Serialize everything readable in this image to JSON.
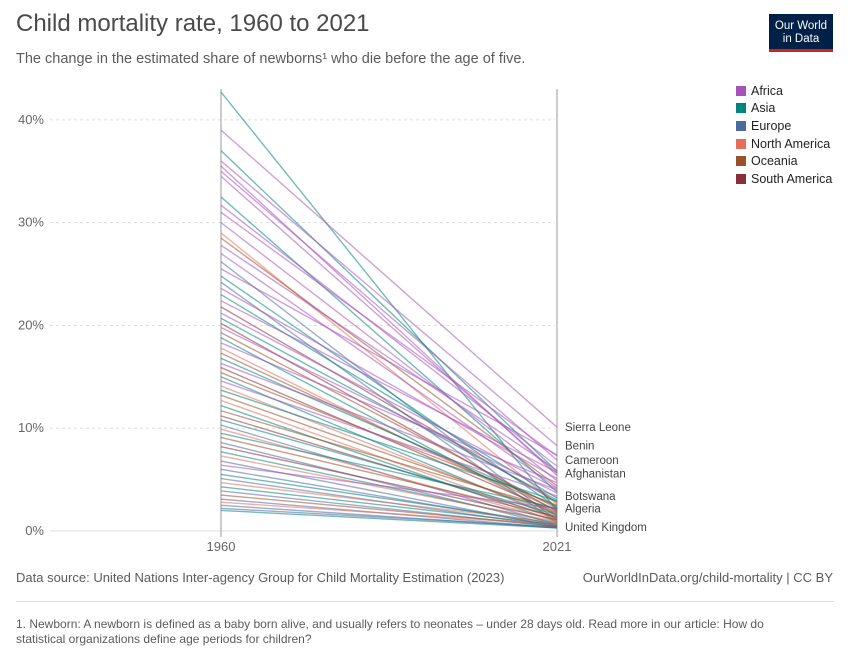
{
  "header": {
    "title": "Child mortality rate, 1960 to 2021",
    "subtitle": "The change in the estimated share of newborns¹ who die before the age of five.",
    "logo_line1": "Our World",
    "logo_line2": "in Data"
  },
  "legend": {
    "placement": "top-right",
    "items": [
      {
        "label": "Africa",
        "color": "#a652ba"
      },
      {
        "label": "Asia",
        "color": "#00847e"
      },
      {
        "label": "Europe",
        "color": "#4c6a9c"
      },
      {
        "label": "North America",
        "color": "#e56e5a"
      },
      {
        "label": "Oceania",
        "color": "#9a5129"
      },
      {
        "label": "South America",
        "color": "#883039"
      }
    ]
  },
  "footer": {
    "source": "Data source: United Nations Inter-agency Group for Child Mortality Estimation (2023)",
    "link": "OurWorldInData.org/child-mortality | CC BY",
    "note": "1. Newborn: A newborn is defined as a baby born alive, and usually refers to neonates – under 28 days old. Read more in our article: How do statistical organizations define age periods for children?"
  },
  "chart_data": {
    "type": "line",
    "title": "Child mortality rate, 1960 to 2021",
    "x": [
      "1960",
      "2021"
    ],
    "ylim": [
      0,
      43
    ],
    "yticks": [
      0,
      10,
      20,
      30,
      40
    ],
    "ytick_labels": [
      "0%",
      "10%",
      "20%",
      "30%",
      "40%"
    ],
    "grid": true,
    "labeled_series": [
      {
        "name": "Sierra Leone",
        "value_2021": 10.1
      },
      {
        "name": "Benin",
        "value_2021": 8.3
      },
      {
        "name": "Cameroon",
        "value_2021": 6.9
      },
      {
        "name": "Afghanistan",
        "value_2021": 5.6
      },
      {
        "name": "Botswana",
        "value_2021": 3.4
      },
      {
        "name": "Algeria",
        "value_2021": 2.2
      },
      {
        "name": "United Kingdom",
        "value_2021": 0.4
      }
    ],
    "series": [
      {
        "region": "Asia",
        "values": [
          42.7,
          2.0
        ]
      },
      {
        "region": "Africa",
        "values": [
          39.0,
          10.1
        ]
      },
      {
        "region": "Asia",
        "values": [
          37.0,
          5.8
        ]
      },
      {
        "region": "Africa",
        "values": [
          36.0,
          8.3
        ]
      },
      {
        "region": "Africa",
        "values": [
          35.5,
          5.4
        ]
      },
      {
        "region": "Africa",
        "values": [
          35.0,
          6.9
        ]
      },
      {
        "region": "Africa",
        "values": [
          34.5,
          5.6
        ]
      },
      {
        "region": "Asia",
        "values": [
          32.5,
          3.8
        ]
      },
      {
        "region": "Africa",
        "values": [
          31.7,
          6.3
        ]
      },
      {
        "region": "Africa",
        "values": [
          31.0,
          7.3
        ]
      },
      {
        "region": "Africa",
        "values": [
          30.0,
          4.9
        ]
      },
      {
        "region": "North America",
        "values": [
          29.0,
          2.6
        ]
      },
      {
        "region": "Oceania",
        "values": [
          28.5,
          4.4
        ]
      },
      {
        "region": "Africa",
        "values": [
          27.8,
          5.9
        ]
      },
      {
        "region": "Africa",
        "values": [
          27.0,
          4.2
        ]
      },
      {
        "region": "Europe",
        "values": [
          26.2,
          1.0
        ]
      },
      {
        "region": "Africa",
        "values": [
          25.5,
          7.4
        ]
      },
      {
        "region": "Asia",
        "values": [
          24.8,
          2.3
        ]
      },
      {
        "region": "Europe",
        "values": [
          24.2,
          0.8
        ]
      },
      {
        "region": "Africa",
        "values": [
          23.6,
          5.1
        ]
      },
      {
        "region": "Asia",
        "values": [
          23.0,
          3.2
        ]
      },
      {
        "region": "Africa",
        "values": [
          22.4,
          5.7
        ]
      },
      {
        "region": "South America",
        "values": [
          21.8,
          2.8
        ]
      },
      {
        "region": "Africa",
        "values": [
          21.2,
          4.1
        ]
      },
      {
        "region": "Asia",
        "values": [
          20.7,
          3.0
        ]
      },
      {
        "region": "South America",
        "values": [
          20.2,
          1.9
        ]
      },
      {
        "region": "Africa",
        "values": [
          19.8,
          3.7
        ]
      },
      {
        "region": "Oceania",
        "values": [
          19.3,
          2.2
        ]
      },
      {
        "region": "Asia",
        "values": [
          18.8,
          1.5
        ]
      },
      {
        "region": "Africa",
        "values": [
          18.3,
          4.7
        ]
      },
      {
        "region": "North America",
        "values": [
          17.8,
          1.6
        ]
      },
      {
        "region": "Oceania",
        "values": [
          17.3,
          2.0
        ]
      },
      {
        "region": "Asia",
        "values": [
          16.8,
          2.4
        ]
      },
      {
        "region": "Africa",
        "values": [
          16.3,
          4.0
        ]
      },
      {
        "region": "South America",
        "values": [
          15.9,
          1.8
        ]
      },
      {
        "region": "Oceania",
        "values": [
          15.4,
          2.5
        ]
      },
      {
        "region": "Asia",
        "values": [
          15.0,
          1.2
        ]
      },
      {
        "region": "Africa",
        "values": [
          14.6,
          3.4
        ]
      },
      {
        "region": "North America",
        "values": [
          14.1,
          1.4
        ]
      },
      {
        "region": "Asia",
        "values": [
          13.7,
          2.9
        ]
      },
      {
        "region": "Oceania",
        "values": [
          13.2,
          1.7
        ]
      },
      {
        "region": "North America",
        "values": [
          12.7,
          1.1
        ]
      },
      {
        "region": "Asia",
        "values": [
          12.2,
          0.9
        ]
      },
      {
        "region": "Oceania",
        "values": [
          11.7,
          2.1
        ]
      },
      {
        "region": "South America",
        "values": [
          11.2,
          1.3
        ]
      },
      {
        "region": "Asia",
        "values": [
          10.8,
          1.6
        ]
      },
      {
        "region": "Europe",
        "values": [
          10.3,
          0.6
        ]
      },
      {
        "region": "North America",
        "values": [
          9.9,
          1.0
        ]
      },
      {
        "region": "Asia",
        "values": [
          9.5,
          2.2
        ]
      },
      {
        "region": "Oceania",
        "values": [
          9.1,
          1.4
        ]
      },
      {
        "region": "Europe",
        "values": [
          8.6,
          0.5
        ]
      },
      {
        "region": "South America",
        "values": [
          8.2,
          1.1
        ]
      },
      {
        "region": "Asia",
        "values": [
          7.7,
          0.8
        ]
      },
      {
        "region": "North America",
        "values": [
          7.3,
          0.9
        ]
      },
      {
        "region": "Europe",
        "values": [
          6.8,
          0.4
        ]
      },
      {
        "region": "Africa",
        "values": [
          6.4,
          2.2
        ]
      },
      {
        "region": "Europe",
        "values": [
          6.0,
          0.5
        ]
      },
      {
        "region": "Asia",
        "values": [
          5.5,
          0.7
        ]
      },
      {
        "region": "Europe",
        "values": [
          5.1,
          0.4
        ]
      },
      {
        "region": "North America",
        "values": [
          4.7,
          0.8
        ]
      },
      {
        "region": "Asia",
        "values": [
          4.3,
          0.6
        ]
      },
      {
        "region": "Europe",
        "values": [
          3.9,
          0.4
        ]
      },
      {
        "region": "Oceania",
        "values": [
          3.5,
          0.5
        ]
      },
      {
        "region": "Europe",
        "values": [
          3.1,
          0.3
        ]
      },
      {
        "region": "North America",
        "values": [
          2.8,
          0.6
        ]
      },
      {
        "region": "Europe",
        "values": [
          2.5,
          0.3
        ]
      },
      {
        "region": "Europe",
        "values": [
          2.2,
          0.4
        ]
      },
      {
        "region": "Asia",
        "values": [
          2.0,
          0.3
        ]
      }
    ]
  }
}
